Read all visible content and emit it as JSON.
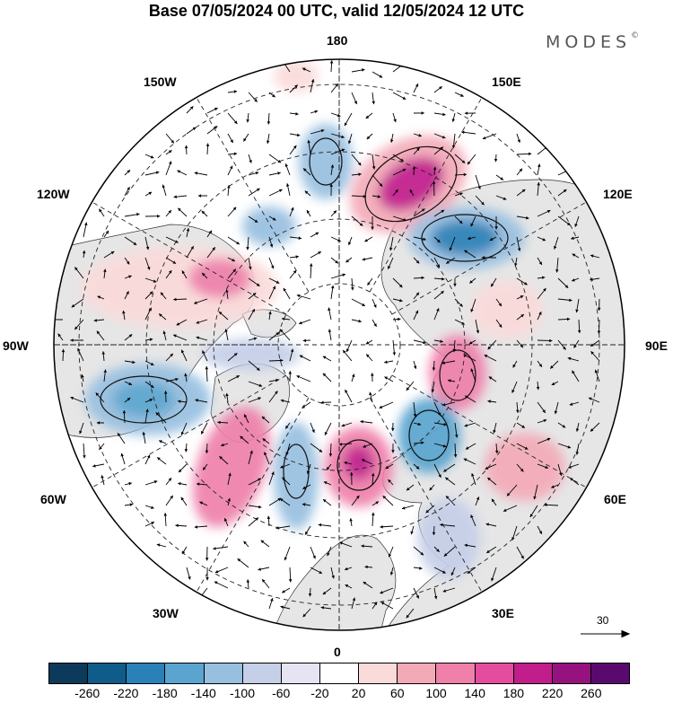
{
  "title": "Base 07/05/2024 00 UTC, valid 12/05/2024 12 UTC",
  "brand": "MODES",
  "brand_mark": "©",
  "map_labels": {
    "top": "180",
    "bottom": "0",
    "left": "90W",
    "right": "90E",
    "nw1": "150W",
    "nw2": "120W",
    "ne1": "150E",
    "ne2": "120E",
    "sw1": "60W",
    "sw2": "30W",
    "se1": "60E",
    "se2": "30E"
  },
  "vector_reference": "30",
  "colorbar": {
    "colors": [
      "#0b3a5a",
      "#0f5c8a",
      "#2a81b8",
      "#5aa4cf",
      "#97bfe0",
      "#c5cfe8",
      "#e6e4f2",
      "#ffffff",
      "#fbdada",
      "#f3aab8",
      "#ef80aa",
      "#e44d9e",
      "#c11d8b",
      "#96127e",
      "#5a0a6e"
    ],
    "ticks": [
      "-260",
      "-220",
      "-180",
      "-140",
      "-100",
      "-60",
      "-20",
      "20",
      "60",
      "100",
      "140",
      "180",
      "220",
      "260"
    ]
  }
}
